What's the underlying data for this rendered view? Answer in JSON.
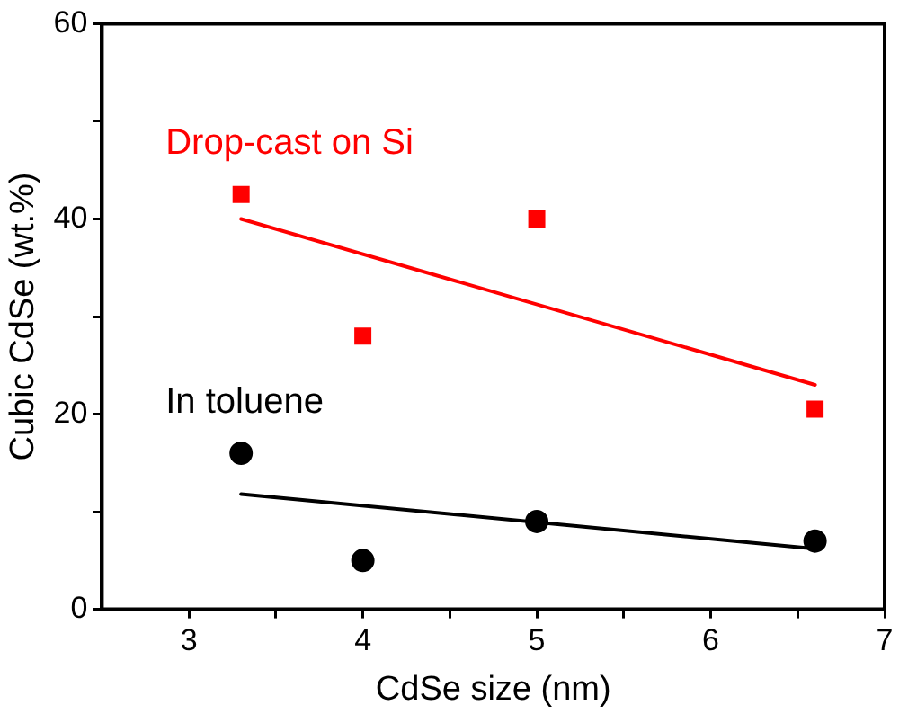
{
  "chart_data": {
    "type": "scatter",
    "xlabel": "CdSe size (nm)",
    "ylabel": "Cubic CdSe (wt.%)",
    "xlim": [
      2.5,
      7
    ],
    "xticks": [
      3,
      {
        "value": 3.5,
        "label": null
      },
      4,
      {
        "value": 4.5,
        "label": null
      },
      5,
      {
        "value": 5.5,
        "label": null
      },
      6,
      {
        "value": 6.5,
        "label": null
      },
      7
    ],
    "ylim": [
      0,
      60
    ],
    "yticks": [
      0,
      {
        "value": 10,
        "label": null
      },
      20,
      {
        "value": 30,
        "label": null
      },
      40,
      {
        "value": 50,
        "label": null
      },
      60
    ],
    "grid": false,
    "legend": false,
    "series": [
      {
        "name": "Drop-cast on Si",
        "color": "#ff0000",
        "marker": "square",
        "x": [
          3.3,
          4,
          5,
          6.6
        ],
        "values": [
          42.5,
          28,
          40,
          20.5
        ]
      },
      {
        "name": "In toluene",
        "color": "#000000",
        "marker": "circle",
        "x": [
          3.3,
          4,
          5,
          6.6
        ],
        "values": [
          16,
          5,
          9,
          7
        ]
      },
      {
        "type": "line",
        "color": "#ff0000",
        "marker": "none",
        "x": [
          3.3,
          6.6
        ],
        "values": [
          40,
          23
        ]
      },
      {
        "type": "line",
        "color": "#000000",
        "marker": "none",
        "x": [
          3.3,
          6.6
        ],
        "values": [
          11.8,
          6.2
        ]
      }
    ]
  }
}
